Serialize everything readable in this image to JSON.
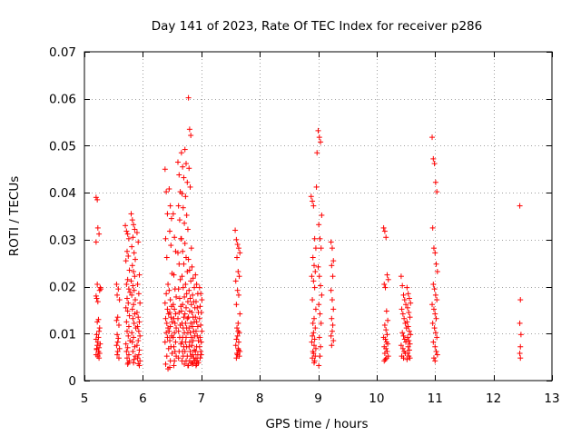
{
  "chart_data": {
    "type": "scatter",
    "title": "Day 141 of 2023, Rate Of TEC Index for receiver p286",
    "xlabel": "GPS time / hours",
    "ylabel": "ROTI / TECUs",
    "xlim": [
      5,
      13
    ],
    "ylim": [
      0,
      0.07
    ],
    "xticks": [
      5,
      6,
      7,
      8,
      9,
      10,
      11,
      12,
      13
    ],
    "yticks": [
      0,
      0.01,
      0.02,
      0.03,
      0.04,
      0.05,
      0.06,
      0.07
    ],
    "ytick_labels": [
      "0",
      "0.01",
      "0.02",
      "0.03",
      "0.04",
      "0.05",
      "0.06",
      "0.07"
    ],
    "grid": true,
    "marker": "+",
    "series": [
      {
        "name": "ROTI",
        "color": "#ff0000",
        "x": [
          5.2,
          5.22,
          5.2,
          5.23,
          5.25,
          5.22,
          5.27,
          5.26,
          5.2,
          5.21,
          5.23,
          5.24,
          5.22,
          5.26,
          5.25,
          5.21,
          5.24,
          5.2,
          5.23,
          5.27,
          5.22,
          5.25,
          5.21,
          5.24,
          5.26,
          5.2,
          5.23,
          5.25,
          5.28,
          5.21,
          5.55,
          5.58,
          5.56,
          5.6,
          5.57,
          5.55,
          5.59,
          5.56,
          5.58,
          5.57,
          5.55,
          5.6,
          5.57,
          5.56,
          5.59,
          5.7,
          5.72,
          5.74,
          5.76,
          5.73,
          5.75,
          5.71,
          5.77,
          5.74,
          5.72,
          5.76,
          5.78,
          5.73,
          5.75,
          5.71,
          5.74,
          5.77,
          5.72,
          5.76,
          5.73,
          5.75,
          5.78,
          5.71,
          5.74,
          5.72,
          5.76,
          5.73,
          5.77,
          5.75,
          5.74,
          5.8,
          5.82,
          5.84,
          5.86,
          5.83,
          5.81,
          5.85,
          5.87,
          5.82,
          5.84,
          5.86,
          5.8,
          5.83,
          5.85,
          5.81,
          5.87,
          5.84,
          5.82,
          5.86,
          5.83,
          5.85,
          5.88,
          5.81,
          5.84,
          5.82,
          5.86,
          5.83,
          5.87,
          5.85,
          5.84,
          5.9,
          5.92,
          5.94,
          5.91,
          5.93,
          5.95,
          5.9,
          5.92,
          5.94,
          5.91,
          5.93,
          5.95,
          5.92,
          5.9,
          5.94,
          5.93,
          5.91,
          5.95,
          5.92,
          5.94,
          6.38,
          6.4,
          6.42,
          6.39,
          6.41,
          6.43,
          6.4,
          6.38,
          6.42,
          6.44,
          6.39,
          6.41,
          6.43,
          6.4,
          6.42,
          6.38,
          6.44,
          6.41,
          6.39,
          6.43,
          6.45,
          6.47,
          6.49,
          6.46,
          6.48,
          6.5,
          6.45,
          6.47,
          6.49,
          6.46,
          6.48,
          6.5,
          6.47,
          6.45,
          6.49,
          6.46,
          6.48,
          6.5,
          6.47,
          6.46,
          6.52,
          6.54,
          6.56,
          6.53,
          6.55,
          6.57,
          6.52,
          6.54,
          6.56,
          6.53,
          6.55,
          6.57,
          6.54,
          6.52,
          6.56,
          6.53,
          6.55,
          6.57,
          6.54,
          6.53,
          6.6,
          6.62,
          6.64,
          6.61,
          6.63,
          6.65,
          6.6,
          6.62,
          6.64,
          6.61,
          6.63,
          6.65,
          6.62,
          6.6,
          6.64,
          6.61,
          6.63,
          6.65,
          6.62,
          6.61,
          6.66,
          6.68,
          6.7,
          6.67,
          6.69,
          6.71,
          6.66,
          6.68,
          6.7,
          6.67,
          6.69,
          6.71,
          6.68,
          6.66,
          6.7,
          6.67,
          6.69,
          6.71,
          6.68,
          6.67,
          6.7,
          6.68,
          6.69,
          6.67,
          6.71,
          6.72,
          6.74,
          6.76,
          6.73,
          6.75,
          6.77,
          6.72,
          6.74,
          6.76,
          6.73,
          6.75,
          6.77,
          6.74,
          6.72,
          6.76,
          6.73,
          6.75,
          6.77,
          6.74,
          6.73,
          6.75,
          6.72,
          6.76,
          6.74,
          6.77,
          6.78,
          6.8,
          6.82,
          6.79,
          6.81,
          6.83,
          6.78,
          6.8,
          6.82,
          6.79,
          6.81,
          6.83,
          6.8,
          6.78,
          6.82,
          6.79,
          6.81,
          6.83,
          6.8,
          6.79,
          6.81,
          6.82,
          6.8,
          6.83,
          6.78,
          6.84,
          6.86,
          6.88,
          6.85,
          6.87,
          6.89,
          6.84,
          6.86,
          6.88,
          6.85,
          6.87,
          6.89,
          6.86,
          6.84,
          6.88,
          6.85,
          6.87,
          6.89,
          6.86,
          6.85,
          6.9,
          6.92,
          6.94,
          6.91,
          6.93,
          6.95,
          6.9,
          6.92,
          6.94,
          6.91,
          6.93,
          6.95,
          6.92,
          6.9,
          6.94,
          6.91,
          6.93,
          6.95,
          6.92,
          6.91,
          6.97,
          6.99,
          7.01,
          6.98,
          7.0,
          6.97,
          6.99,
          7.01,
          6.98,
          7.0,
          6.97,
          6.99,
          7.0,
          6.98,
          7.58,
          7.6,
          7.62,
          7.64,
          7.66,
          7.61,
          7.63,
          7.65,
          7.59,
          7.62,
          7.64,
          7.6,
          7.66,
          7.63,
          7.61,
          7.65,
          7.62,
          7.6,
          7.64,
          7.59,
          7.63,
          7.66,
          7.61,
          7.62,
          7.65,
          7.6,
          7.64,
          7.63,
          8.88,
          8.9,
          8.92,
          8.94,
          8.96,
          8.91,
          8.93,
          8.95,
          8.89,
          8.92,
          8.94,
          8.9,
          8.96,
          8.93,
          8.91,
          8.95,
          8.92,
          8.9,
          8.94,
          8.89,
          8.93,
          8.96,
          8.91,
          8.92,
          8.95,
          8.9,
          8.94,
          8.93,
          8.97,
          8.98,
          9.0,
          9.02,
          9.04,
          9.06,
          9.01,
          9.03,
          9.05,
          9.0,
          9.02,
          9.04,
          9.06,
          9.01,
          9.03,
          9.05,
          9.02,
          9.04,
          9.03,
          9.01,
          9.22,
          9.24,
          9.26,
          9.23,
          9.25,
          9.22,
          9.24,
          9.26,
          9.23,
          9.25,
          9.24,
          9.22,
          9.26,
          9.23,
          10.12,
          10.14,
          10.16,
          10.18,
          10.2,
          10.13,
          10.15,
          10.17,
          10.19,
          10.14,
          10.16,
          10.18,
          10.12,
          10.15,
          10.17,
          10.19,
          10.13,
          10.16,
          10.18,
          10.14,
          10.2,
          10.17,
          10.15,
          10.13,
          10.42,
          10.44,
          10.46,
          10.48,
          10.5,
          10.43,
          10.45,
          10.47,
          10.49,
          10.51,
          10.44,
          10.46,
          10.48,
          10.5,
          10.42,
          10.45,
          10.47,
          10.49,
          10.43,
          10.46,
          10.52,
          10.54,
          10.56,
          10.58,
          10.53,
          10.55,
          10.57,
          10.52,
          10.54,
          10.56,
          10.58,
          10.53,
          10.55,
          10.57,
          10.54,
          10.56,
          10.53,
          10.55,
          10.57,
          10.52,
          10.95,
          10.97,
          10.99,
          11.01,
          11.03,
          10.96,
          10.98,
          11.0,
          11.02,
          11.04,
          10.97,
          10.99,
          11.01,
          11.03,
          10.95,
          10.98,
          11.0,
          11.02,
          10.96,
          10.99,
          11.01,
          11.03,
          10.97,
          11.0,
          11.02,
          11.04,
          10.98,
          11.0,
          12.45,
          12.46,
          12.45,
          12.47,
          12.46,
          12.45,
          12.46
        ],
        "y": [
          0.039,
          0.0385,
          0.0295,
          0.0325,
          0.0312,
          0.0205,
          0.0198,
          0.0192,
          0.018,
          0.0175,
          0.0168,
          0.013,
          0.0125,
          0.0112,
          0.0105,
          0.0098,
          0.0092,
          0.0088,
          0.0082,
          0.0078,
          0.0075,
          0.007,
          0.0066,
          0.0062,
          0.0058,
          0.0055,
          0.0052,
          0.0048,
          0.0195,
          0.0068,
          0.0205,
          0.0195,
          0.0182,
          0.0172,
          0.0135,
          0.0128,
          0.0118,
          0.0098,
          0.009,
          0.0082,
          0.0075,
          0.0068,
          0.0062,
          0.0055,
          0.0048,
          0.033,
          0.0318,
          0.0312,
          0.0302,
          0.0275,
          0.0265,
          0.0255,
          0.0235,
          0.0215,
          0.0205,
          0.0195,
          0.0188,
          0.0175,
          0.0165,
          0.0155,
          0.0148,
          0.0138,
          0.0125,
          0.0115,
          0.0105,
          0.0095,
          0.0085,
          0.0078,
          0.007,
          0.0062,
          0.0055,
          0.0048,
          0.0042,
          0.0038,
          0.0035,
          0.0355,
          0.0342,
          0.0332,
          0.0322,
          0.0305,
          0.0285,
          0.0272,
          0.0258,
          0.0245,
          0.0232,
          0.0222,
          0.0212,
          0.0202,
          0.0192,
          0.0182,
          0.0172,
          0.0162,
          0.0152,
          0.0142,
          0.0132,
          0.0122,
          0.0112,
          0.0102,
          0.0092,
          0.0082,
          0.0072,
          0.0062,
          0.0052,
          0.0045,
          0.0038,
          0.0315,
          0.0295,
          0.0225,
          0.0205,
          0.0185,
          0.0165,
          0.0145,
          0.0135,
          0.0125,
          0.0115,
          0.0105,
          0.0095,
          0.0085,
          0.0075,
          0.0065,
          0.0055,
          0.0048,
          0.0042,
          0.0036,
          0.0032,
          0.045,
          0.0402,
          0.0355,
          0.0302,
          0.0262,
          0.0205,
          0.0185,
          0.0165,
          0.0152,
          0.0142,
          0.0132,
          0.0122,
          0.0112,
          0.0102,
          0.0092,
          0.0082,
          0.0068,
          0.0052,
          0.0035,
          0.0025,
          0.0408,
          0.0372,
          0.0345,
          0.0318,
          0.0288,
          0.0228,
          0.0192,
          0.0172,
          0.0158,
          0.0145,
          0.0135,
          0.0125,
          0.0115,
          0.0105,
          0.0095,
          0.0085,
          0.0072,
          0.0058,
          0.0042,
          0.0028,
          0.0355,
          0.0305,
          0.0275,
          0.0225,
          0.0195,
          0.0178,
          0.0162,
          0.0152,
          0.0142,
          0.0132,
          0.0122,
          0.0112,
          0.0102,
          0.0092,
          0.0082,
          0.0072,
          0.0062,
          0.0052,
          0.0042,
          0.0032,
          0.0465,
          0.0438,
          0.0402,
          0.0372,
          0.0342,
          0.0302,
          0.0272,
          0.0248,
          0.0215,
          0.0195,
          0.0175,
          0.0158,
          0.0145,
          0.0132,
          0.0118,
          0.0105,
          0.0092,
          0.0078,
          0.0062,
          0.0048,
          0.0485,
          0.0455,
          0.0432,
          0.0398,
          0.0368,
          0.0335,
          0.0302,
          0.0275,
          0.0248,
          0.0222,
          0.0198,
          0.0178,
          0.0162,
          0.0148,
          0.0135,
          0.0122,
          0.0112,
          0.0102,
          0.0092,
          0.0082,
          0.0072,
          0.0062,
          0.0052,
          0.0042,
          0.0035,
          0.0492,
          0.0462,
          0.0422,
          0.0392,
          0.0352,
          0.0322,
          0.0292,
          0.0262,
          0.0232,
          0.0205,
          0.0185,
          0.0168,
          0.0155,
          0.0142,
          0.0132,
          0.0122,
          0.0112,
          0.0102,
          0.0092,
          0.0082,
          0.0072,
          0.0062,
          0.0052,
          0.0042,
          0.0032,
          0.0602,
          0.0535,
          0.0522,
          0.0452,
          0.0412,
          0.0282,
          0.0258,
          0.0235,
          0.0212,
          0.0192,
          0.0175,
          0.0162,
          0.0148,
          0.0135,
          0.0122,
          0.0112,
          0.0102,
          0.0092,
          0.0082,
          0.0072,
          0.0062,
          0.0052,
          0.0042,
          0.0038,
          0.0032,
          0.0242,
          0.0218,
          0.0198,
          0.0182,
          0.0168,
          0.0155,
          0.0145,
          0.0135,
          0.0125,
          0.0115,
          0.0105,
          0.0095,
          0.0085,
          0.0075,
          0.0065,
          0.0055,
          0.0048,
          0.0042,
          0.0038,
          0.0035,
          0.0225,
          0.0205,
          0.0185,
          0.0168,
          0.0155,
          0.0145,
          0.0135,
          0.0125,
          0.0115,
          0.0105,
          0.0095,
          0.0085,
          0.0072,
          0.0062,
          0.0055,
          0.0048,
          0.0042,
          0.0038,
          0.0035,
          0.0032,
          0.0198,
          0.0185,
          0.0172,
          0.0158,
          0.0145,
          0.0132,
          0.0118,
          0.0105,
          0.0092,
          0.0082,
          0.0072,
          0.0062,
          0.0055,
          0.0048,
          0.032,
          0.03,
          0.029,
          0.0282,
          0.0272,
          0.0262,
          0.0232,
          0.0222,
          0.0212,
          0.0192,
          0.0182,
          0.0162,
          0.0142,
          0.0122,
          0.0112,
          0.0102,
          0.0095,
          0.0088,
          0.0082,
          0.0075,
          0.0068,
          0.0062,
          0.0058,
          0.0055,
          0.0052,
          0.0048,
          0.0065,
          0.0105,
          0.0392,
          0.0382,
          0.0372,
          0.0302,
          0.0282,
          0.0262,
          0.0245,
          0.0232,
          0.0222,
          0.0212,
          0.0198,
          0.0172,
          0.0152,
          0.0132,
          0.0122,
          0.0112,
          0.0102,
          0.0095,
          0.0088,
          0.0082,
          0.0075,
          0.0068,
          0.0062,
          0.0058,
          0.0052,
          0.0048,
          0.0042,
          0.0038,
          0.0412,
          0.0485,
          0.0532,
          0.0518,
          0.0508,
          0.0352,
          0.0332,
          0.0302,
          0.0282,
          0.0242,
          0.0222,
          0.0202,
          0.0182,
          0.0162,
          0.0142,
          0.0122,
          0.0092,
          0.0072,
          0.0052,
          0.0032,
          0.0295,
          0.0282,
          0.0255,
          0.0245,
          0.0222,
          0.0192,
          0.0172,
          0.0152,
          0.0132,
          0.0118,
          0.0105,
          0.0095,
          0.0085,
          0.0075,
          0.0325,
          0.0318,
          0.0305,
          0.0225,
          0.0215,
          0.0205,
          0.0198,
          0.0148,
          0.0128,
          0.0118,
          0.0108,
          0.0098,
          0.0092,
          0.0088,
          0.0082,
          0.0078,
          0.0072,
          0.0068,
          0.0062,
          0.0058,
          0.0052,
          0.0048,
          0.0045,
          0.0042,
          0.0222,
          0.0202,
          0.0182,
          0.0172,
          0.0162,
          0.0152,
          0.0142,
          0.0132,
          0.0122,
          0.0112,
          0.0102,
          0.0095,
          0.0088,
          0.0082,
          0.0075,
          0.0068,
          0.0062,
          0.0058,
          0.0052,
          0.0048,
          0.0198,
          0.0185,
          0.0175,
          0.0165,
          0.0155,
          0.0145,
          0.0135,
          0.0125,
          0.0115,
          0.0105,
          0.0098,
          0.0092,
          0.0085,
          0.0078,
          0.0072,
          0.0065,
          0.0058,
          0.0052,
          0.0048,
          0.0045,
          0.0518,
          0.0472,
          0.0462,
          0.0422,
          0.0402,
          0.0325,
          0.0282,
          0.0272,
          0.0248,
          0.0232,
          0.0205,
          0.0195,
          0.0182,
          0.0172,
          0.0162,
          0.0152,
          0.0142,
          0.0132,
          0.0122,
          0.0112,
          0.0102,
          0.0092,
          0.0082,
          0.0072,
          0.0062,
          0.0055,
          0.0048,
          0.0042,
          0.0372,
          0.0172,
          0.0122,
          0.0098,
          0.0072,
          0.0058,
          0.0048
        ]
      }
    ]
  }
}
